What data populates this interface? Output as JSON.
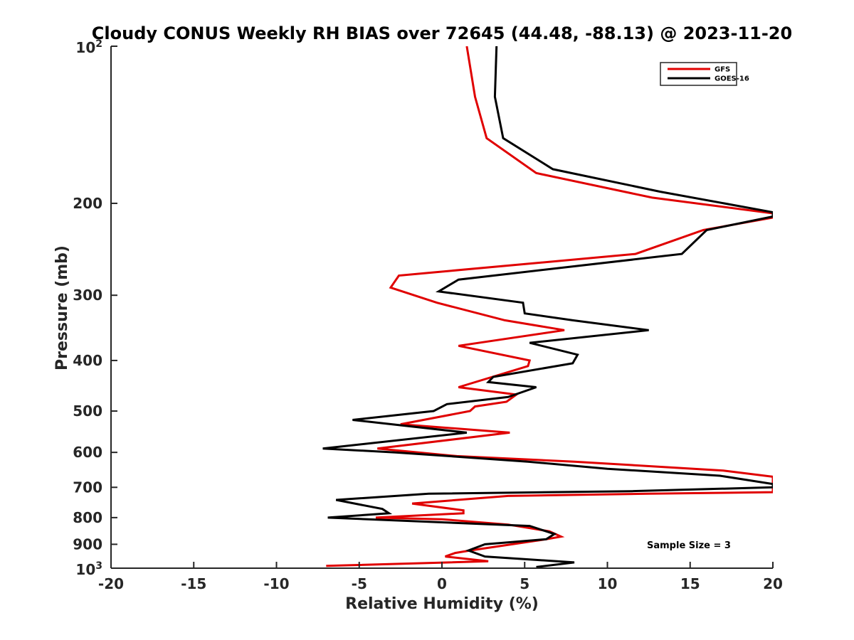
{
  "chart_data": {
    "type": "line",
    "title": "Cloudy CONUS Weekly RH BIAS over 72645 (44.48, -88.13) @ 2023-11-20",
    "xlabel": "Relative Humidity (%)",
    "ylabel": "Pressure (mb)",
    "xlim": [
      -20,
      20
    ],
    "ylim": [
      100,
      1000
    ],
    "yscale": "log",
    "y_reversed": true,
    "grid": false,
    "legend_position": "top-right",
    "x_ticks": [
      "-20",
      "-15",
      "-10",
      "-5",
      "0",
      "5",
      "10",
      "15",
      "20"
    ],
    "y_ticks": [
      {
        "value": 100,
        "base": "10",
        "exp": "2"
      },
      {
        "value": 200,
        "label": "200"
      },
      {
        "value": 300,
        "label": "300"
      },
      {
        "value": 400,
        "label": "400"
      },
      {
        "value": 500,
        "label": "500"
      },
      {
        "value": 600,
        "label": "600"
      },
      {
        "value": 700,
        "label": "700"
      },
      {
        "value": 800,
        "label": "800"
      },
      {
        "value": 900,
        "label": "900"
      },
      {
        "value": 1000,
        "base": "10",
        "exp": "3"
      }
    ],
    "annotation": "Sample Size = 3",
    "series": [
      {
        "name": "GFS",
        "color": "#e00000",
        "points": [
          [
            1.5,
            100
          ],
          [
            2.0,
            125
          ],
          [
            2.7,
            150
          ],
          [
            5.7,
            175
          ],
          [
            12.7,
            195
          ],
          [
            20.0,
            209
          ],
          [
            20.0,
            213
          ],
          [
            15.8,
            225
          ],
          [
            11.7,
            250
          ],
          [
            -2.6,
            275
          ],
          [
            -3.1,
            290
          ],
          [
            -0.3,
            310
          ],
          [
            3.8,
            335
          ],
          [
            7.4,
            350
          ],
          [
            1.0,
            375
          ],
          [
            5.3,
            400
          ],
          [
            5.2,
            410
          ],
          [
            1.0,
            450
          ],
          [
            4.5,
            465
          ],
          [
            3.9,
            480
          ],
          [
            2.0,
            490
          ],
          [
            1.7,
            500
          ],
          [
            -2.5,
            530
          ],
          [
            4.1,
            550
          ],
          [
            -3.9,
            590
          ],
          [
            0.9,
            610
          ],
          [
            8.0,
            625
          ],
          [
            17.0,
            650
          ],
          [
            20.0,
            668
          ],
          [
            20.0,
            715
          ],
          [
            12.5,
            720
          ],
          [
            4.0,
            727
          ],
          [
            -1.8,
            752
          ],
          [
            1.3,
            775
          ],
          [
            1.3,
            785
          ],
          [
            -4.0,
            800
          ],
          [
            0.0,
            806
          ],
          [
            4.0,
            825
          ],
          [
            6.5,
            850
          ],
          [
            7.2,
            870
          ],
          [
            6.3,
            880
          ],
          [
            1.7,
            925
          ],
          [
            0.8,
            935
          ],
          [
            0.2,
            950
          ],
          [
            2.8,
            970
          ],
          [
            -7.0,
            990
          ]
        ]
      },
      {
        "name": "GOES-16",
        "color": "#000000",
        "points": [
          [
            3.3,
            100
          ],
          [
            3.2,
            125
          ],
          [
            3.7,
            150
          ],
          [
            6.7,
            172
          ],
          [
            13.2,
            190
          ],
          [
            20.0,
            208
          ],
          [
            20.0,
            212
          ],
          [
            16.0,
            225
          ],
          [
            14.5,
            250
          ],
          [
            1.0,
            280
          ],
          [
            -0.2,
            295
          ],
          [
            4.9,
            310
          ],
          [
            5.0,
            325
          ],
          [
            7.9,
            335
          ],
          [
            12.5,
            350
          ],
          [
            5.3,
            370
          ],
          [
            8.2,
            390
          ],
          [
            7.9,
            405
          ],
          [
            3.1,
            430
          ],
          [
            2.8,
            440
          ],
          [
            5.7,
            450
          ],
          [
            4.0,
            470
          ],
          [
            0.3,
            485
          ],
          [
            -0.5,
            500
          ],
          [
            -5.4,
            520
          ],
          [
            1.5,
            550
          ],
          [
            -7.2,
            590
          ],
          [
            -2.8,
            600
          ],
          [
            5.2,
            625
          ],
          [
            10.0,
            645
          ],
          [
            16.8,
            665
          ],
          [
            20.0,
            690
          ],
          [
            20.0,
            700
          ],
          [
            11.5,
            712
          ],
          [
            -0.8,
            720
          ],
          [
            -6.4,
            740
          ],
          [
            -3.6,
            770
          ],
          [
            -3.2,
            785
          ],
          [
            -6.9,
            800
          ],
          [
            5.3,
            830
          ],
          [
            6.8,
            860
          ],
          [
            6.3,
            880
          ],
          [
            2.6,
            900
          ],
          [
            1.6,
            925
          ],
          [
            2.6,
            950
          ],
          [
            8.0,
            975
          ],
          [
            5.7,
            995
          ]
        ]
      }
    ]
  }
}
